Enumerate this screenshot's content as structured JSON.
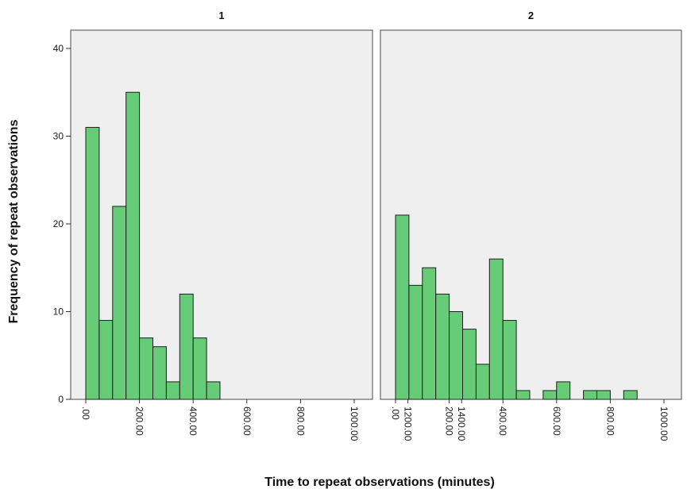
{
  "chart_data": {
    "type": "bar",
    "xlabel": "Time to repeat observations (minutes)",
    "ylabel": "Frequency of repeat observations",
    "ylim": [
      0,
      43
    ],
    "yticks": [
      0,
      10,
      20,
      30,
      40
    ],
    "xlim": [
      -50,
      1550
    ],
    "bin_width": 50,
    "xticks": [
      ".00",
      "200.00",
      "400.00",
      "600.00",
      "800.00",
      "1000.00",
      "1200.00",
      "1400.00"
    ],
    "xtick_values": [
      0,
      200,
      400,
      600,
      800,
      1000,
      1200,
      1400
    ],
    "grid": false,
    "panels": [
      {
        "title": "1",
        "bins": [
          {
            "x": 0,
            "count": 31
          },
          {
            "x": 50,
            "count": 9
          },
          {
            "x": 100,
            "count": 22
          },
          {
            "x": 150,
            "count": 35
          },
          {
            "x": 200,
            "count": 7
          },
          {
            "x": 250,
            "count": 6
          },
          {
            "x": 300,
            "count": 2
          },
          {
            "x": 350,
            "count": 12
          },
          {
            "x": 400,
            "count": 7
          },
          {
            "x": 450,
            "count": 2
          }
        ]
      },
      {
        "title": "2",
        "bins": [
          {
            "x": 0,
            "count": 21
          },
          {
            "x": 50,
            "count": 13
          },
          {
            "x": 100,
            "count": 15
          },
          {
            "x": 150,
            "count": 12
          },
          {
            "x": 200,
            "count": 10
          },
          {
            "x": 250,
            "count": 8
          },
          {
            "x": 300,
            "count": 4
          },
          {
            "x": 350,
            "count": 16
          },
          {
            "x": 400,
            "count": 9
          },
          {
            "x": 450,
            "count": 1
          },
          {
            "x": 550,
            "count": 1
          },
          {
            "x": 600,
            "count": 2
          },
          {
            "x": 700,
            "count": 1
          },
          {
            "x": 750,
            "count": 1
          },
          {
            "x": 850,
            "count": 1
          }
        ]
      }
    ]
  },
  "colors": {
    "bar_fill": "#66cc77",
    "bar_stroke": "#1f1f1f",
    "panel_background": "#efefef"
  }
}
